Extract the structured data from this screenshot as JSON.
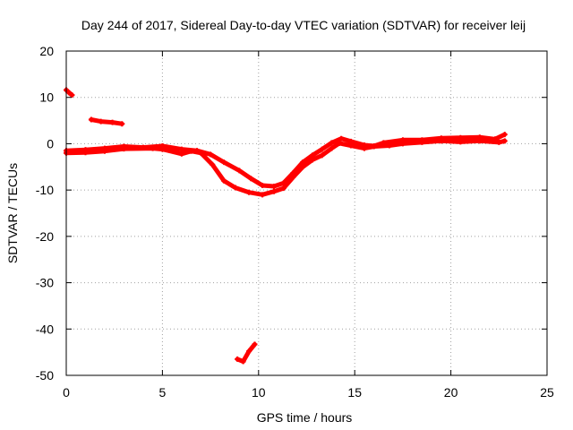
{
  "chart_data": {
    "type": "scatter",
    "title": "Day 244 of 2017, Sidereal Day-to-day VTEC variation (SDTVAR) for receiver leij",
    "xlabel": "GPS time / hours",
    "ylabel": "SDTVAR / TECUs",
    "xlim": [
      0,
      25
    ],
    "ylim": [
      -50,
      20
    ],
    "xticks": [
      0,
      5,
      10,
      15,
      20,
      25
    ],
    "yticks": [
      -50,
      -40,
      -30,
      -20,
      -10,
      0,
      10,
      20
    ],
    "grid": true,
    "series_color": "#ff0000",
    "series": [
      {
        "name": "track-early-high",
        "points": [
          [
            0.0,
            11.6
          ],
          [
            0.15,
            11.0
          ],
          [
            0.3,
            10.5
          ]
        ]
      },
      {
        "name": "track-early-5",
        "points": [
          [
            1.3,
            5.2
          ],
          [
            1.8,
            4.8
          ],
          [
            2.4,
            4.6
          ],
          [
            2.9,
            4.3
          ]
        ]
      },
      {
        "name": "track-main-upper",
        "points": [
          [
            0.0,
            -1.5
          ],
          [
            1.0,
            -1.3
          ],
          [
            2.0,
            -1.0
          ],
          [
            3.0,
            -0.6
          ],
          [
            4.0,
            -0.8
          ],
          [
            5.0,
            -0.5
          ],
          [
            6.0,
            -1.2
          ],
          [
            6.8,
            -1.5
          ],
          [
            7.5,
            -2.3
          ],
          [
            8.2,
            -4.0
          ],
          [
            9.0,
            -5.8
          ],
          [
            9.6,
            -7.5
          ],
          [
            10.2,
            -9.0
          ],
          [
            10.8,
            -9.2
          ],
          [
            11.3,
            -8.5
          ],
          [
            11.8,
            -6.3
          ],
          [
            12.3,
            -4.0
          ],
          [
            12.8,
            -2.5
          ],
          [
            13.3,
            -1.2
          ],
          [
            13.8,
            0.2
          ],
          [
            14.3,
            1.1
          ],
          [
            14.8,
            0.5
          ],
          [
            15.5,
            -0.3
          ],
          [
            16.0,
            -0.5
          ],
          [
            16.5,
            0.2
          ],
          [
            17.5,
            0.8
          ],
          [
            18.5,
            0.8
          ],
          [
            19.5,
            1.2
          ],
          [
            20.5,
            1.3
          ],
          [
            21.5,
            1.4
          ],
          [
            22.3,
            1.0
          ],
          [
            22.8,
            2.0
          ]
        ]
      },
      {
        "name": "track-main-lower",
        "points": [
          [
            0.0,
            -2.0
          ],
          [
            1.0,
            -1.9
          ],
          [
            2.0,
            -1.6
          ],
          [
            3.0,
            -1.1
          ],
          [
            4.5,
            -1.0
          ],
          [
            5.0,
            -1.2
          ],
          [
            6.0,
            -2.2
          ],
          [
            6.5,
            -1.6
          ],
          [
            7.0,
            -2.0
          ],
          [
            7.6,
            -4.5
          ],
          [
            8.2,
            -8.0
          ],
          [
            8.8,
            -9.5
          ],
          [
            9.5,
            -10.5
          ],
          [
            10.2,
            -11.0
          ],
          [
            10.8,
            -10.3
          ],
          [
            11.3,
            -9.6
          ],
          [
            11.8,
            -7.2
          ],
          [
            12.3,
            -5.0
          ],
          [
            12.8,
            -3.5
          ],
          [
            13.3,
            -2.5
          ],
          [
            13.8,
            -1.0
          ],
          [
            14.2,
            0.1
          ],
          [
            14.8,
            -0.4
          ],
          [
            15.5,
            -1.0
          ],
          [
            16.0,
            -0.6
          ],
          [
            16.8,
            -0.4
          ],
          [
            17.5,
            0.0
          ],
          [
            18.5,
            0.3
          ],
          [
            19.5,
            0.6
          ],
          [
            20.5,
            0.4
          ],
          [
            21.5,
            0.6
          ],
          [
            22.5,
            0.3
          ],
          [
            22.8,
            0.6
          ]
        ]
      },
      {
        "name": "track-outlier-low",
        "points": [
          [
            8.9,
            -46.5
          ],
          [
            9.2,
            -47.0
          ],
          [
            9.5,
            -44.8
          ],
          [
            9.8,
            -43.3
          ]
        ]
      }
    ]
  }
}
